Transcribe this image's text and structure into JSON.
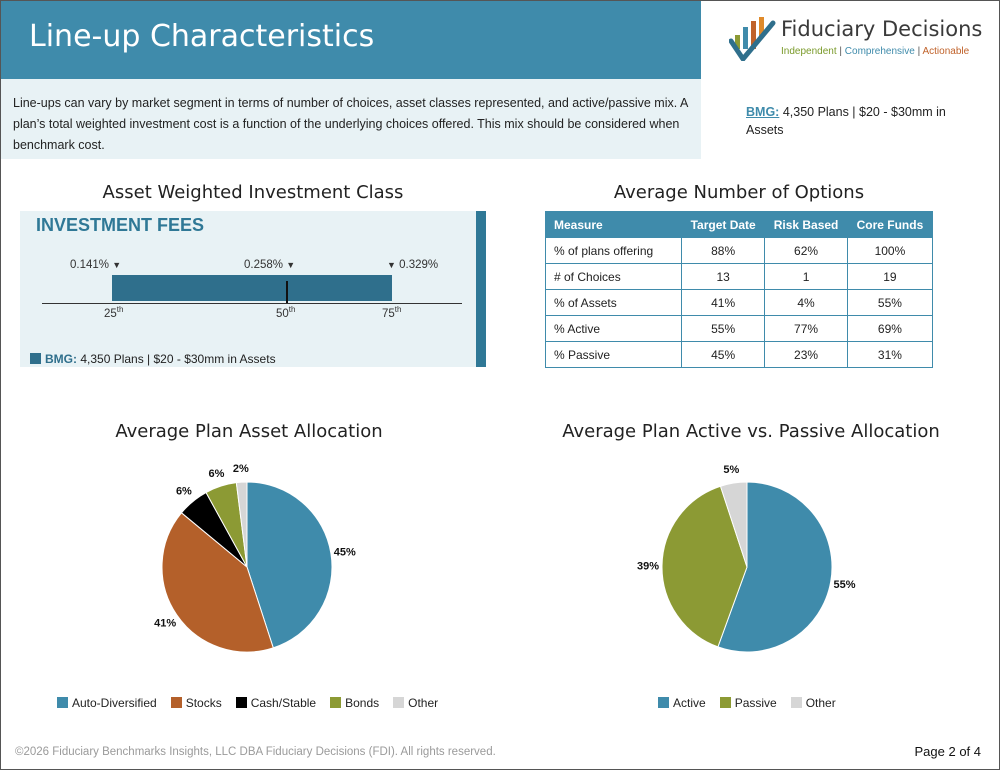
{
  "header": {
    "title": "Line-up Characteristics",
    "logo_name": "Fiduciary Decisions",
    "logo_tag": [
      "Independent",
      "Comprehensive",
      "Actionable"
    ],
    "logo_sep": "|"
  },
  "intro": "Line-ups can vary by market segment in terms of number of choices, asset classes represented, and active/passive mix. A plan’s total weighted investment cost is a function of the underlying choices offered. This mix should be considered when benchmark cost.",
  "bmg_note": {
    "label": "BMG:",
    "text": "4,350 Plans | $20 - $30mm in Assets"
  },
  "colors": {
    "header": "#3f8bab",
    "fees_bar": "#2f6f8c",
    "auto_diversified": "#3f8bab",
    "stocks": "#b4602a",
    "cash": "#000000",
    "bonds": "#8c9a34",
    "other": "#d6d6d6"
  },
  "fees": {
    "section_title": "Asset Weighted Investment Class",
    "title": "INVESTMENT FEES",
    "p25_value": "0.141%",
    "p50_value": "0.258%",
    "p75_value": "0.329%",
    "p25_label": "25",
    "p50_label": "50",
    "p75_label": "75",
    "ordinal": "th",
    "legend_label": "BMG:",
    "legend_text": "4,350 Plans | $20 - $30mm in Assets"
  },
  "options": {
    "section_title": "Average Number of Options",
    "headers": [
      "Measure",
      "Target Date",
      "Risk Based",
      "Core Funds"
    ],
    "rows": [
      [
        "% of plans offering",
        "88%",
        "62%",
        "100%"
      ],
      [
        "# of Choices",
        "13",
        "1",
        "19"
      ],
      [
        "% of Assets",
        "41%",
        "4%",
        "55%"
      ],
      [
        "% Active",
        "55%",
        "77%",
        "69%"
      ],
      [
        "% Passive",
        "45%",
        "23%",
        "31%"
      ]
    ]
  },
  "chart_data": [
    {
      "type": "pie",
      "title": "Average Plan Asset Allocation",
      "categories": [
        "Auto-Diversified",
        "Stocks",
        "Cash/Stable",
        "Bonds",
        "Other"
      ],
      "values": [
        45,
        41,
        6,
        6,
        2
      ],
      "labels": [
        "45%",
        "41%",
        "6%",
        "6%",
        "2%"
      ],
      "colors": [
        "#3f8bab",
        "#b4602a",
        "#000000",
        "#8c9a34",
        "#d6d6d6"
      ],
      "legend": "bottom"
    },
    {
      "type": "pie",
      "title": "Average Plan Active vs. Passive Allocation",
      "categories": [
        "Active",
        "Passive",
        "Other"
      ],
      "values": [
        55,
        39,
        5
      ],
      "labels": [
        "55%",
        "39%",
        "5%"
      ],
      "colors": [
        "#3f8bab",
        "#8c9a34",
        "#d6d6d6"
      ],
      "legend": "bottom"
    }
  ],
  "footer": {
    "copyright": "©2026 Fiduciary Benchmarks Insights, LLC DBA Fiduciary Decisions (FDI). All rights reserved.",
    "page": "Page 2 of 4"
  }
}
